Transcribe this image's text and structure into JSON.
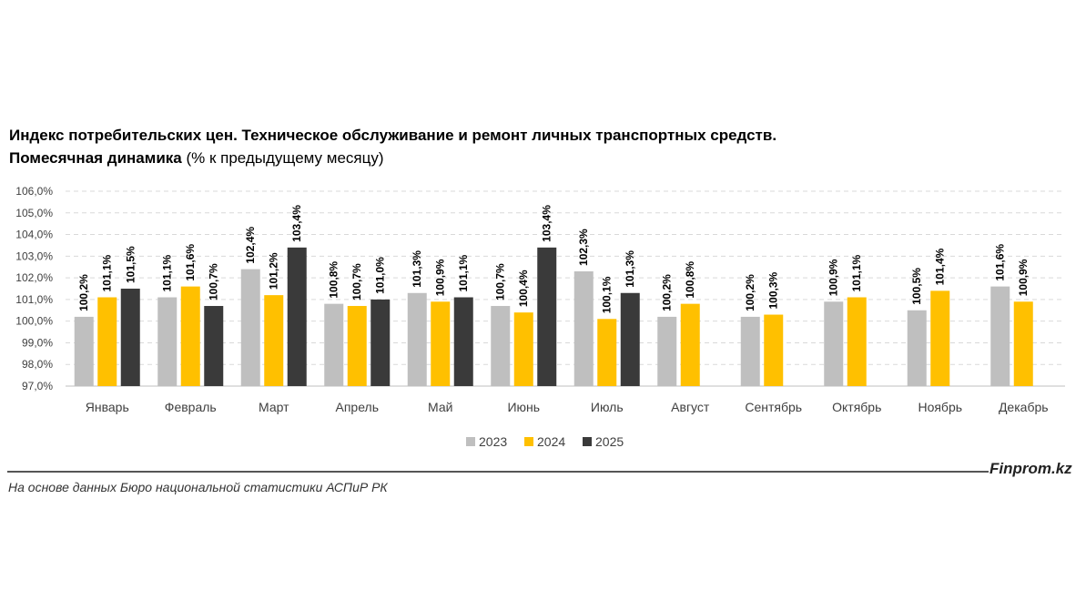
{
  "title": {
    "line1": "Индекс потребительских цен. Техническое обслуживание и ремонт личных транспортных средств.",
    "line2_bold": "Помесячная динамика",
    "line2_rest": " (% к предыдущему месяцу)"
  },
  "footer": {
    "source": "На основе данных Бюро национальной статистики АСПиР РК",
    "brand": "Finprom.kz"
  },
  "colors": {
    "series_2023": "#bfbfbf",
    "series_2024": "#ffc000",
    "series_2025": "#3a3a3a",
    "grid": "#d9d9d9",
    "text": "#404040"
  },
  "chart_data": {
    "type": "bar",
    "categories": [
      "Январь",
      "Февраль",
      "Март",
      "Апрель",
      "Май",
      "Июнь",
      "Июль",
      "Август",
      "Сентябрь",
      "Октябрь",
      "Ноябрь",
      "Декабрь"
    ],
    "series": [
      {
        "name": "2023",
        "values": [
          100.2,
          101.1,
          102.4,
          100.8,
          101.3,
          100.7,
          102.3,
          100.2,
          100.2,
          100.9,
          100.5,
          101.6
        ],
        "labels": [
          "100,2%",
          "101,1%",
          "102,4%",
          "100,8%",
          "101,3%",
          "100,7%",
          "102,3%",
          "100,2%",
          "100,2%",
          "100,9%",
          "100,5%",
          "101,6%"
        ]
      },
      {
        "name": "2024",
        "values": [
          101.1,
          101.6,
          101.2,
          100.7,
          100.9,
          100.4,
          100.1,
          100.8,
          100.3,
          101.1,
          101.4,
          100.9
        ],
        "labels": [
          "101,1%",
          "101,6%",
          "101,2%",
          "100,7%",
          "100,9%",
          "100,4%",
          "100,1%",
          "100,8%",
          "100,3%",
          "101,1%",
          "101,4%",
          "100,9%"
        ]
      },
      {
        "name": "2025",
        "values": [
          101.5,
          100.7,
          103.4,
          101.0,
          101.1,
          103.4,
          101.3,
          null,
          null,
          null,
          null,
          null
        ],
        "labels": [
          "101,5%",
          "100,7%",
          "103,4%",
          "101,0%",
          "101,1%",
          "103,4%",
          "101,3%",
          null,
          null,
          null,
          null,
          null
        ]
      }
    ],
    "y_ticks": [
      "97,0%",
      "98,0%",
      "99,0%",
      "100,0%",
      "101,0%",
      "102,0%",
      "103,0%",
      "104,0%",
      "105,0%",
      "106,0%"
    ],
    "ylim": [
      97,
      106
    ],
    "grid": true,
    "legend_position": "bottom"
  }
}
